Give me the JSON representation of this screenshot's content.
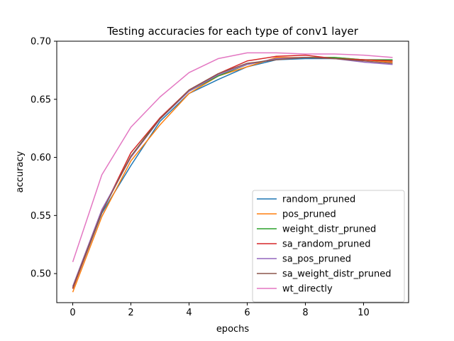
{
  "chart_data": {
    "type": "line",
    "title": "Testing accuracies for each type of conv1 layer",
    "xlabel": "epochs",
    "ylabel": "accuracy",
    "xlim": [
      -0.55,
      11.55
    ],
    "ylim": [
      0.475,
      0.7
    ],
    "xticks": [
      0,
      2,
      4,
      6,
      8,
      10
    ],
    "yticks": [
      0.5,
      0.55,
      0.6,
      0.65,
      0.7
    ],
    "ytick_labels": [
      "0.50",
      "0.55",
      "0.60",
      "0.65",
      "0.70"
    ],
    "grid": false,
    "legend_position": "lower-right",
    "x": [
      0,
      1,
      2,
      3,
      4,
      5,
      6,
      7,
      8,
      9,
      10,
      11
    ],
    "series": [
      {
        "name": "random_pruned",
        "color": "#1f77b4",
        "values": [
          0.487,
          0.552,
          0.593,
          0.631,
          0.655,
          0.667,
          0.678,
          0.684,
          0.685,
          0.685,
          0.684,
          0.683
        ]
      },
      {
        "name": "pos_pruned",
        "color": "#ff7f0e",
        "values": [
          0.484,
          0.549,
          0.597,
          0.628,
          0.655,
          0.67,
          0.678,
          0.686,
          0.686,
          0.686,
          0.684,
          0.682
        ]
      },
      {
        "name": "weight_distr_pruned",
        "color": "#2ca02c",
        "values": [
          0.487,
          0.554,
          0.601,
          0.634,
          0.657,
          0.67,
          0.68,
          0.685,
          0.686,
          0.686,
          0.684,
          0.684
        ]
      },
      {
        "name": "sa_random_pruned",
        "color": "#d62728",
        "values": [
          0.487,
          0.553,
          0.604,
          0.634,
          0.658,
          0.672,
          0.683,
          0.687,
          0.688,
          0.685,
          0.684,
          0.683
        ]
      },
      {
        "name": "sa_pos_pruned",
        "color": "#9467bd",
        "values": [
          0.489,
          0.555,
          0.6,
          0.633,
          0.657,
          0.671,
          0.68,
          0.685,
          0.686,
          0.685,
          0.682,
          0.68
        ]
      },
      {
        "name": "sa_weight_distr_pruned",
        "color": "#8c564b",
        "values": [
          0.488,
          0.553,
          0.601,
          0.633,
          0.658,
          0.672,
          0.681,
          0.684,
          0.686,
          0.685,
          0.683,
          0.681
        ]
      },
      {
        "name": "wt_directly",
        "color": "#e377c2",
        "values": [
          0.51,
          0.585,
          0.626,
          0.652,
          0.673,
          0.685,
          0.69,
          0.69,
          0.689,
          0.689,
          0.688,
          0.686
        ]
      }
    ]
  }
}
